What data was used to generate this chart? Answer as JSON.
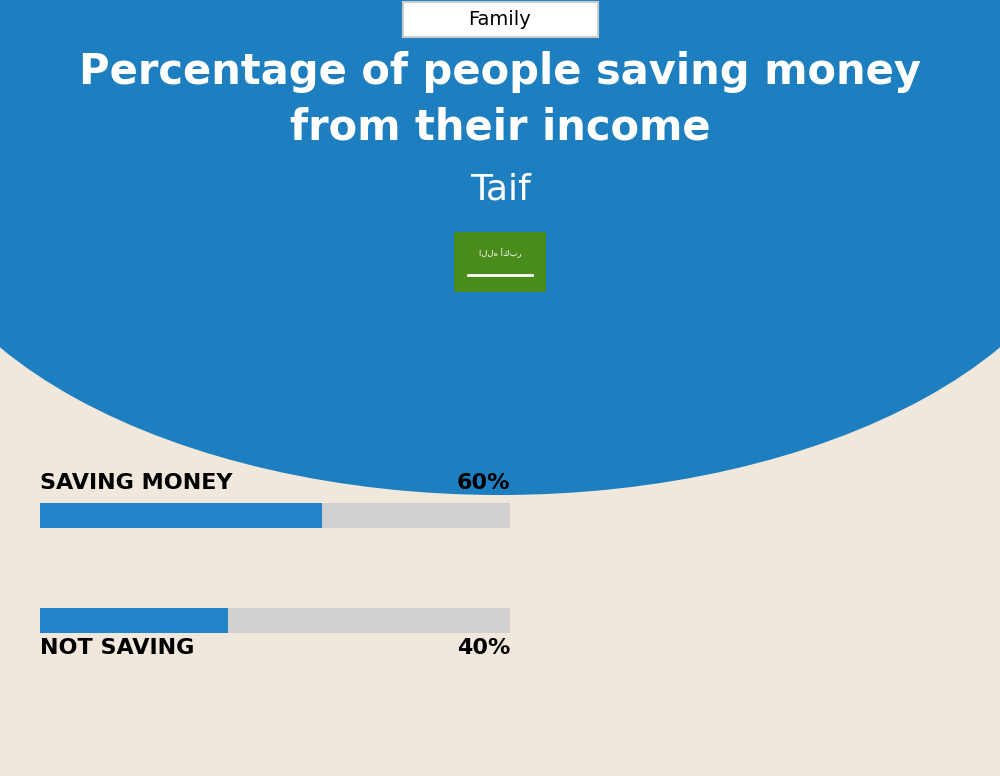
{
  "bg_color": "#f0e8dc",
  "blue_color": "#1e7fc0",
  "header_bg": "#1e7fc0",
  "title_line1": "Percentage of people saving money",
  "title_line2": "from their income",
  "city": "Taif",
  "category_label": "Family",
  "bar1_label": "SAVING MONEY",
  "bar1_value": 60,
  "bar1_pct": "60%",
  "bar2_label": "NOT SAVING",
  "bar2_value": 40,
  "bar2_pct": "40%",
  "bar_color": "#2183c8",
  "bar_bg_color": "#d0d0d0",
  "text_color": "#000000",
  "white_color": "#ffffff",
  "flag_green": "#4a8c1c",
  "family_box_border": "#cccccc"
}
